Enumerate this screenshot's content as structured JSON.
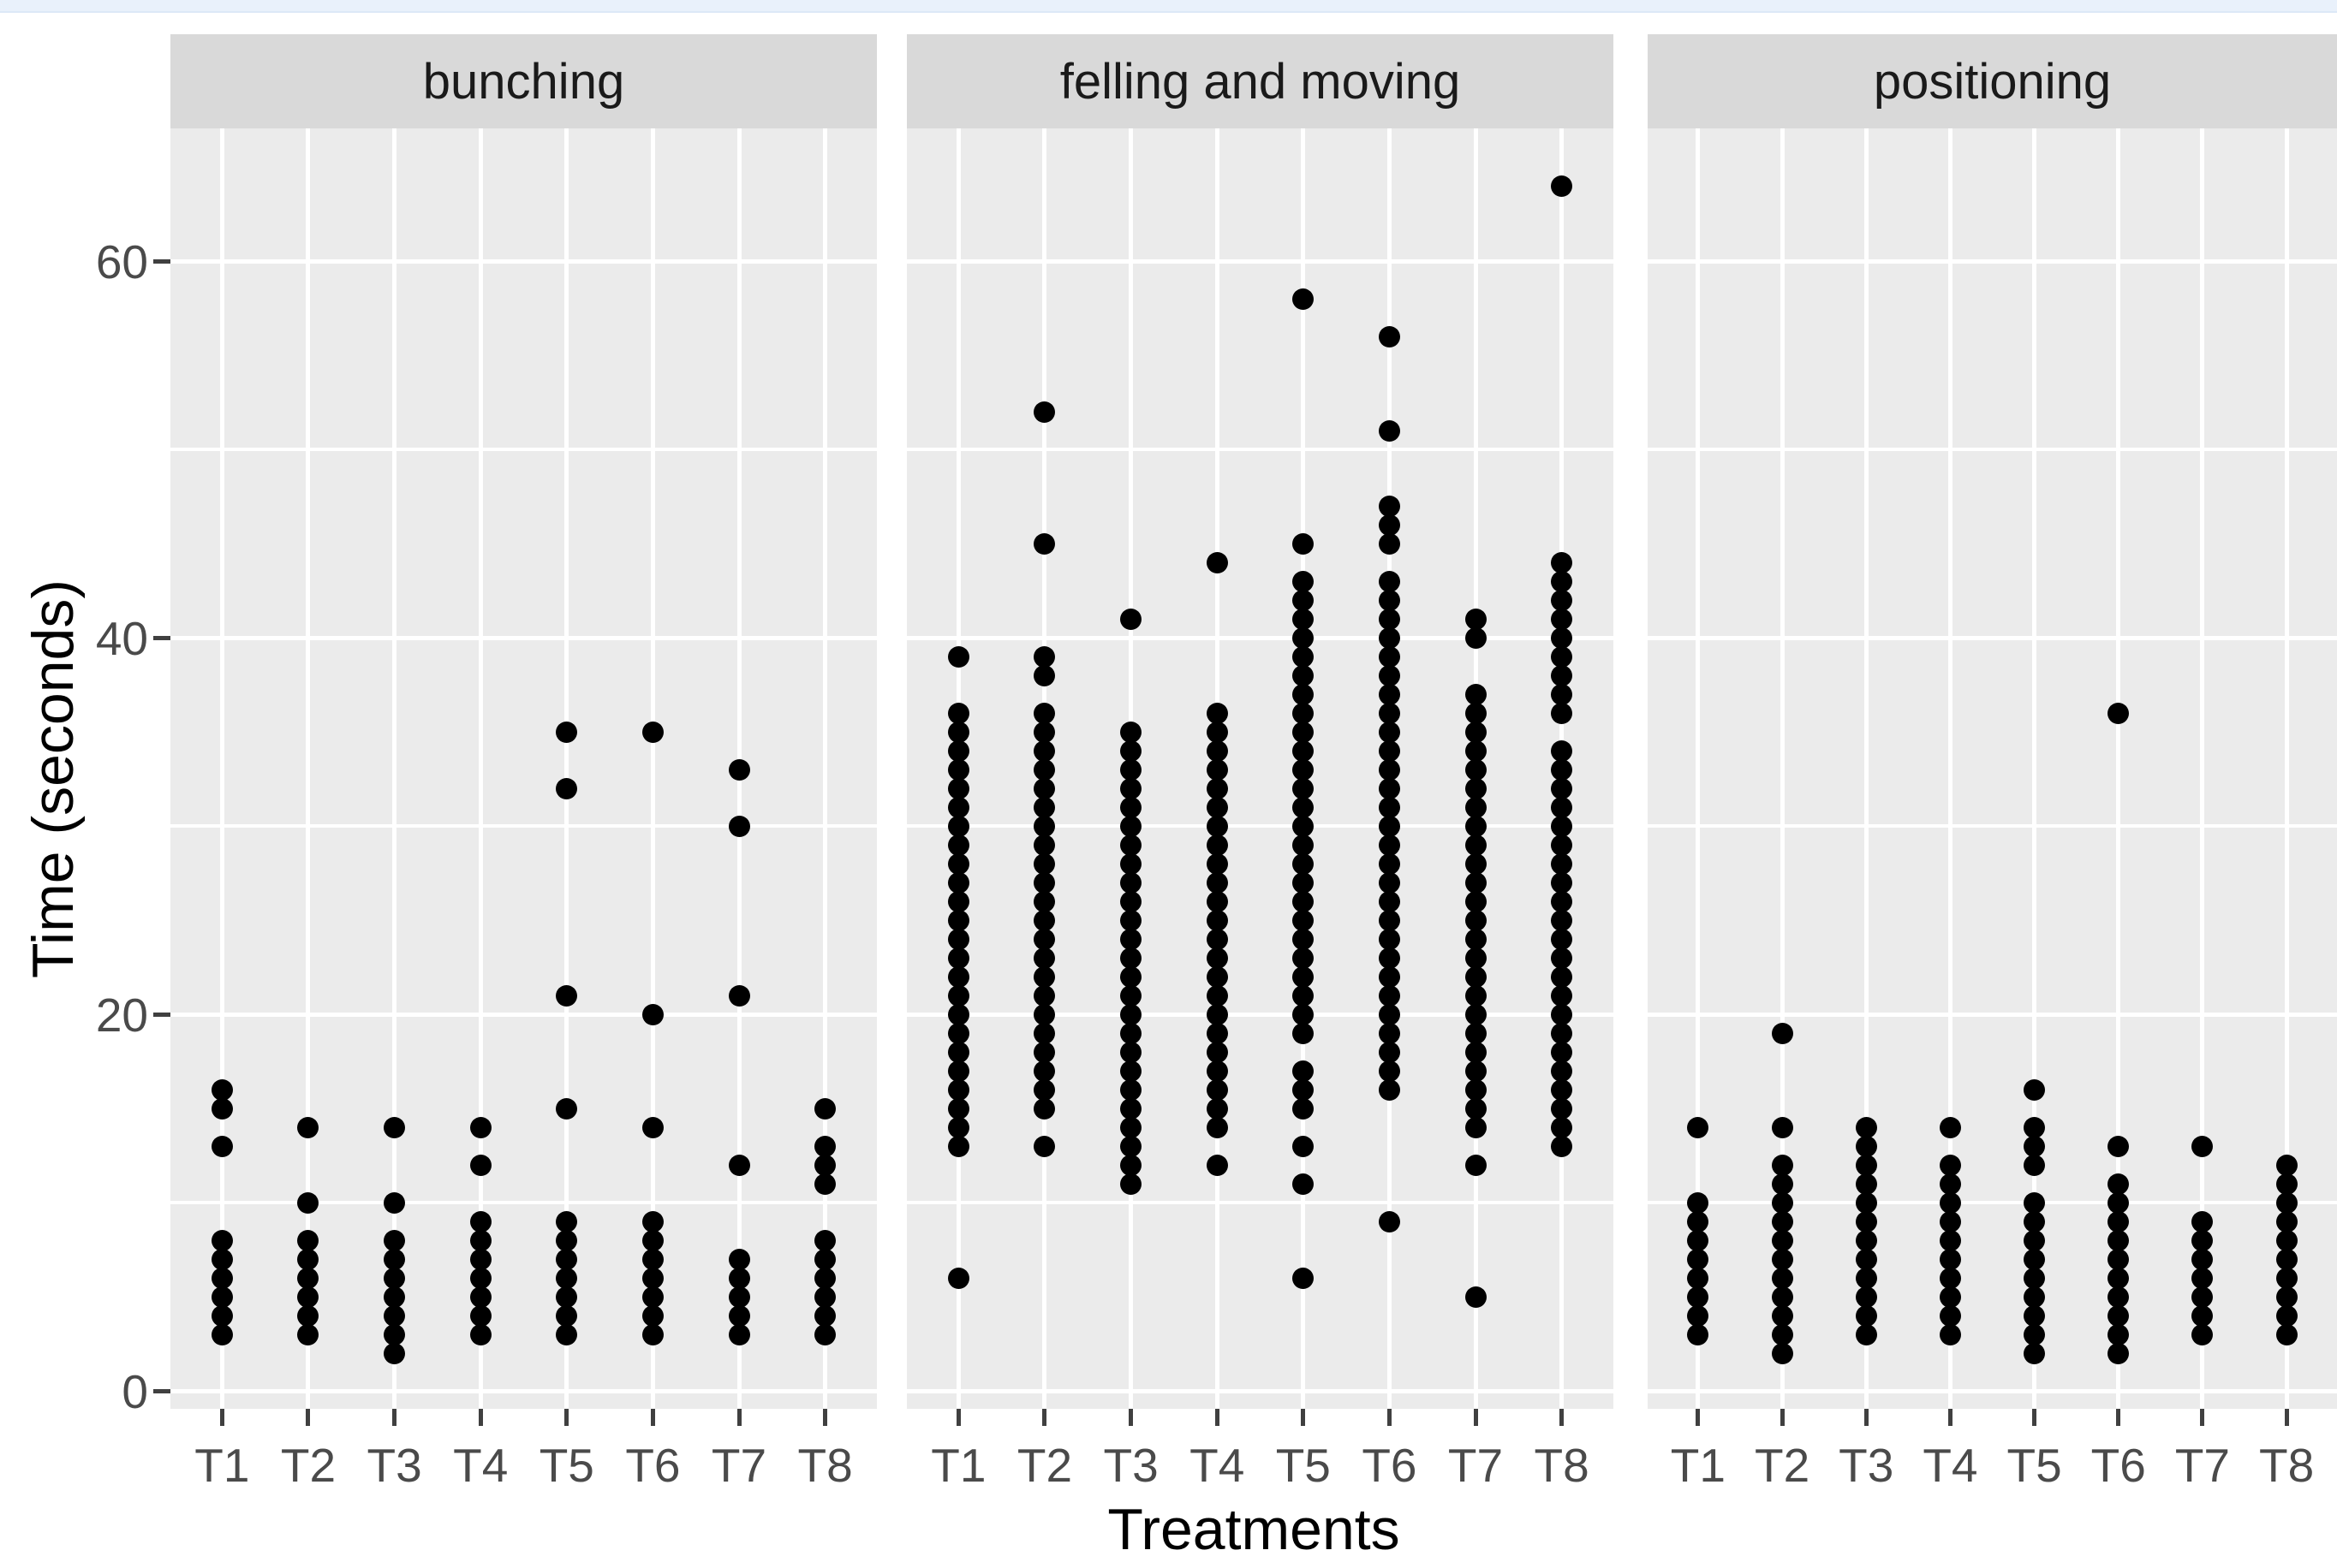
{
  "page": {
    "top_bar_color": "#e9f1fb",
    "background_color": "#ffffff"
  },
  "chart_data": {
    "type": "scatter",
    "subtype": "faceted-stacked-dot-plot",
    "title": "",
    "xlabel": "Treatments",
    "ylabel": "Time (seconds)",
    "x_categories": [
      "T1",
      "T2",
      "T3",
      "T4",
      "T5",
      "T6",
      "T7",
      "T8"
    ],
    "ylim": [
      -1,
      67
    ],
    "y_major_ticks": [
      0,
      20,
      40,
      60
    ],
    "y_tick_labels": [
      "0",
      "20",
      "40",
      "60"
    ],
    "y_minor_gridlines": [
      10,
      30,
      50
    ],
    "legend": "none",
    "grid": "on",
    "point_color": "#000000",
    "panel_background": "#ebebeb",
    "strip_background": "#d9d9d9",
    "gridline_color": "#ffffff",
    "tick_label_color": "#4a4a4a",
    "facets": [
      {
        "label": "bunching",
        "series": {
          "T1": [
            3,
            4,
            5,
            6,
            7,
            8,
            13,
            15,
            16
          ],
          "T2": [
            3,
            4,
            5,
            6,
            7,
            8,
            10,
            14
          ],
          "T3": [
            2,
            3,
            4,
            5,
            6,
            7,
            8,
            10,
            14
          ],
          "T4": [
            3,
            4,
            5,
            6,
            7,
            8,
            9,
            12,
            14
          ],
          "T5": [
            3,
            4,
            5,
            6,
            7,
            8,
            9,
            15,
            21,
            32,
            35
          ],
          "T6": [
            3,
            4,
            5,
            6,
            7,
            8,
            9,
            14,
            20,
            35
          ],
          "T7": [
            3,
            4,
            5,
            6,
            7,
            12,
            21,
            30,
            33
          ],
          "T8": [
            3,
            4,
            5,
            6,
            7,
            8,
            11,
            12,
            13,
            15
          ]
        }
      },
      {
        "label": "felling and moving",
        "series": {
          "T1": [
            6,
            13,
            14,
            15,
            16,
            17,
            18,
            19,
            20,
            21,
            22,
            23,
            24,
            25,
            26,
            27,
            28,
            29,
            30,
            31,
            32,
            33,
            34,
            35,
            36,
            39
          ],
          "T2": [
            13,
            15,
            16,
            17,
            18,
            19,
            20,
            21,
            22,
            23,
            24,
            25,
            26,
            27,
            28,
            29,
            30,
            31,
            32,
            33,
            34,
            35,
            36,
            38,
            39,
            45,
            52
          ],
          "T3": [
            11,
            12,
            13,
            14,
            15,
            16,
            17,
            18,
            19,
            20,
            21,
            22,
            23,
            24,
            25,
            26,
            27,
            28,
            29,
            30,
            31,
            32,
            33,
            34,
            35,
            41
          ],
          "T4": [
            12,
            14,
            15,
            16,
            17,
            18,
            19,
            20,
            21,
            22,
            23,
            24,
            25,
            26,
            27,
            28,
            29,
            30,
            31,
            32,
            33,
            34,
            35,
            36,
            44
          ],
          "T5": [
            6,
            11,
            13,
            15,
            16,
            17,
            19,
            20,
            21,
            22,
            23,
            24,
            25,
            26,
            27,
            28,
            29,
            30,
            31,
            32,
            33,
            34,
            35,
            36,
            37,
            38,
            39,
            40,
            41,
            42,
            43,
            45,
            58
          ],
          "T6": [
            9,
            16,
            17,
            18,
            19,
            20,
            21,
            22,
            23,
            24,
            25,
            26,
            27,
            28,
            29,
            30,
            31,
            32,
            33,
            34,
            35,
            36,
            37,
            38,
            39,
            40,
            41,
            42,
            43,
            45,
            46,
            47,
            51,
            56
          ],
          "T7": [
            5,
            12,
            14,
            15,
            16,
            17,
            18,
            19,
            20,
            21,
            22,
            23,
            24,
            25,
            26,
            27,
            28,
            29,
            30,
            31,
            32,
            33,
            34,
            35,
            36,
            37,
            40,
            41
          ],
          "T8": [
            13,
            14,
            15,
            16,
            17,
            18,
            19,
            20,
            21,
            22,
            23,
            24,
            25,
            26,
            27,
            28,
            29,
            30,
            31,
            32,
            33,
            34,
            36,
            37,
            38,
            39,
            40,
            41,
            42,
            43,
            44,
            64
          ]
        }
      },
      {
        "label": "positioning",
        "series": {
          "T1": [
            3,
            4,
            5,
            6,
            7,
            8,
            9,
            10,
            14
          ],
          "T2": [
            2,
            3,
            4,
            5,
            6,
            7,
            8,
            9,
            10,
            11,
            12,
            14,
            19
          ],
          "T3": [
            3,
            4,
            5,
            6,
            7,
            8,
            9,
            10,
            11,
            12,
            13,
            14
          ],
          "T4": [
            3,
            4,
            5,
            6,
            7,
            8,
            9,
            10,
            11,
            12,
            14
          ],
          "T5": [
            2,
            3,
            4,
            5,
            6,
            7,
            8,
            9,
            10,
            12,
            13,
            14,
            16
          ],
          "T6": [
            2,
            3,
            4,
            5,
            6,
            7,
            8,
            9,
            10,
            11,
            13,
            36
          ],
          "T7": [
            3,
            4,
            5,
            6,
            7,
            8,
            9,
            13
          ],
          "T8": [
            3,
            4,
            5,
            6,
            7,
            8,
            9,
            10,
            11,
            12
          ]
        }
      }
    ]
  }
}
